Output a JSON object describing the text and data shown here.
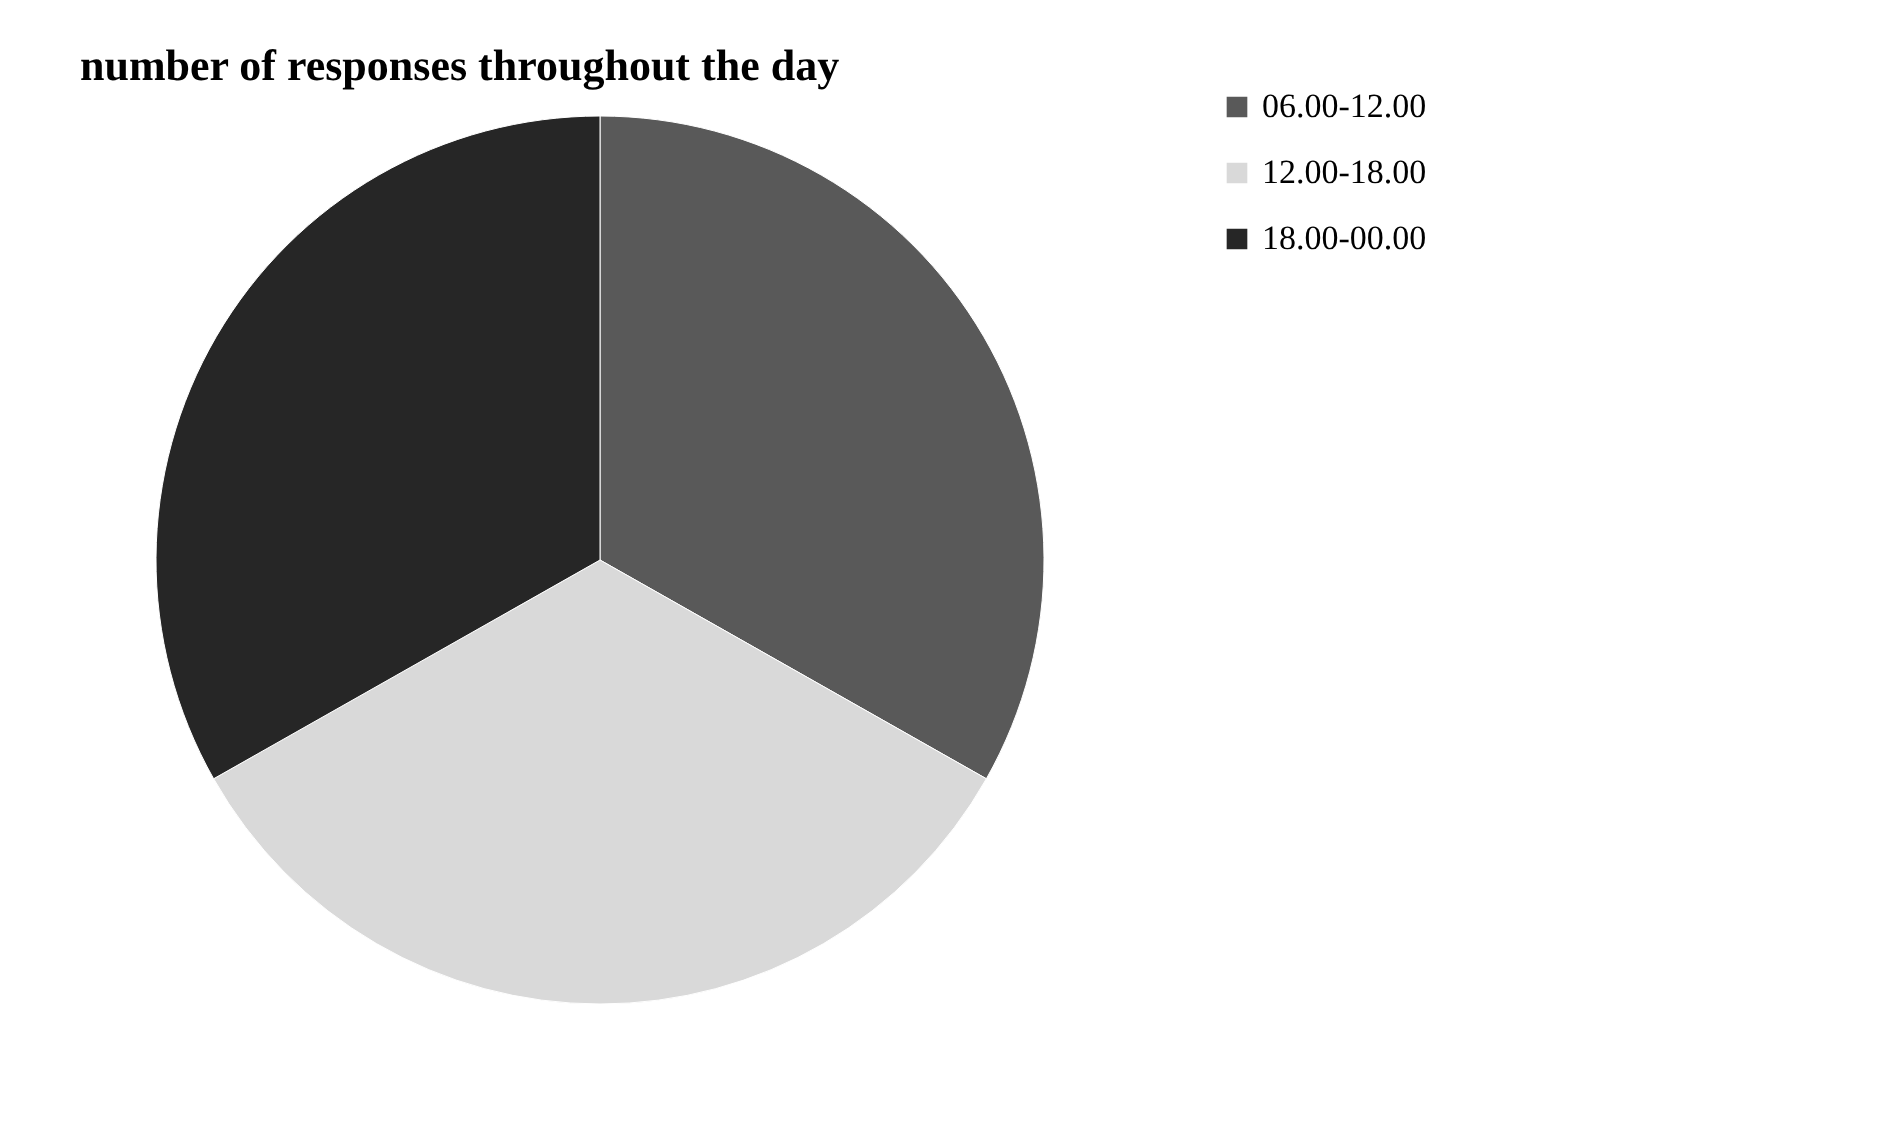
{
  "chart_data": {
    "type": "pie",
    "title": "number of responses throughout the day",
    "categories": [
      "06.00-12.00",
      "12.00-18.00",
      "18.00-00.00"
    ],
    "values": [
      33.2,
      33.6,
      33.2
    ],
    "colors": [
      "#595959",
      "#d9d9d9",
      "#262626"
    ],
    "legend": "right"
  }
}
